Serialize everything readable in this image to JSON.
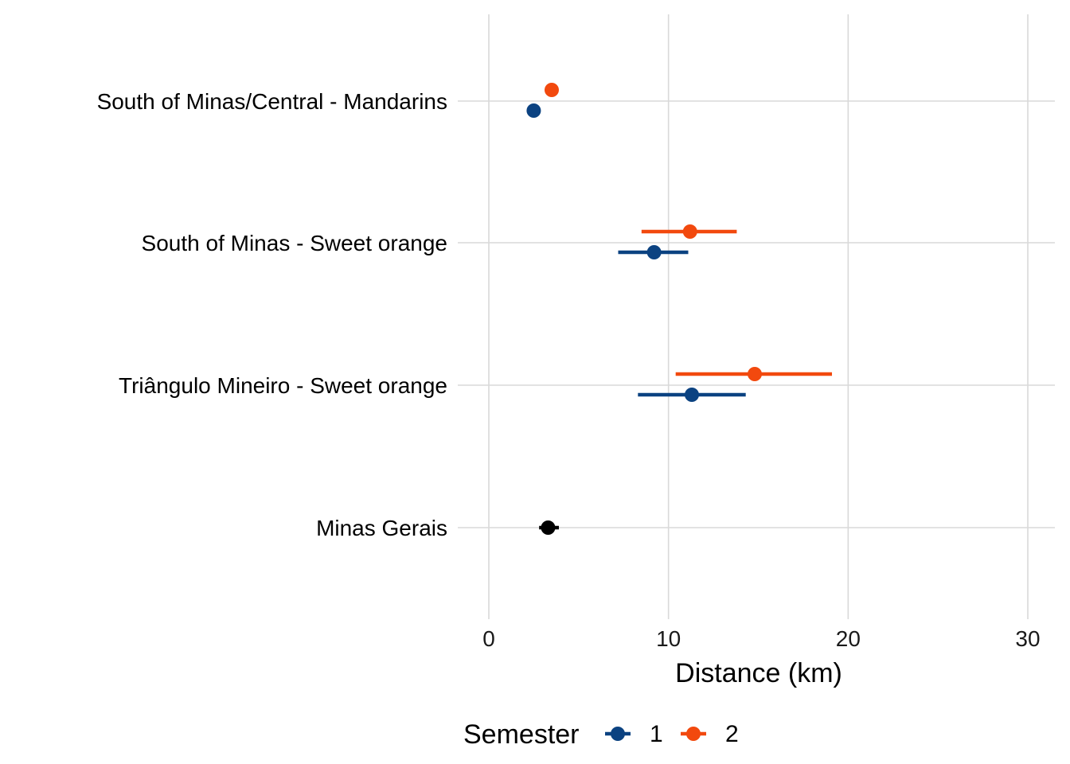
{
  "chart_data": {
    "type": "scatter",
    "xlabel": "Distance (km)",
    "xlim": [
      0,
      30
    ],
    "x_ticks": [
      0,
      10,
      20,
      30
    ],
    "grid": true,
    "categories": [
      "South of Minas/Central - Mandarins",
      "South of Minas - Sweet orange",
      "Triângulo Mineiro - Sweet orange",
      "Minas Gerais"
    ],
    "legend": {
      "title": "Semester",
      "position": "bottom",
      "entries": [
        {
          "label": "1",
          "color": "#0B4281"
        },
        {
          "label": "2",
          "color": "#F2490E"
        }
      ]
    },
    "series": [
      {
        "label": "1",
        "color": "#0B4281",
        "points": [
          {
            "category": "South of Minas/Central - Mandarins",
            "x": 2.5,
            "low": null,
            "high": null
          },
          {
            "category": "South of Minas - Sweet orange",
            "x": 9.2,
            "low": 7.2,
            "high": 11.1
          },
          {
            "category": "Triângulo Mineiro - Sweet orange",
            "x": 11.3,
            "low": 8.3,
            "high": 14.3
          }
        ]
      },
      {
        "label": "2",
        "color": "#F2490E",
        "points": [
          {
            "category": "South of Minas/Central - Mandarins",
            "x": 3.5,
            "low": null,
            "high": null
          },
          {
            "category": "South of Minas - Sweet orange",
            "x": 11.2,
            "low": 8.5,
            "high": 13.8
          },
          {
            "category": "Triângulo Mineiro - Sweet orange",
            "x": 14.8,
            "low": 10.4,
            "high": 19.1
          }
        ]
      },
      {
        "label": "",
        "color": "#000000",
        "points": [
          {
            "category": "Minas Gerais",
            "x": 3.3,
            "low": 2.8,
            "high": 3.9
          }
        ]
      }
    ]
  }
}
